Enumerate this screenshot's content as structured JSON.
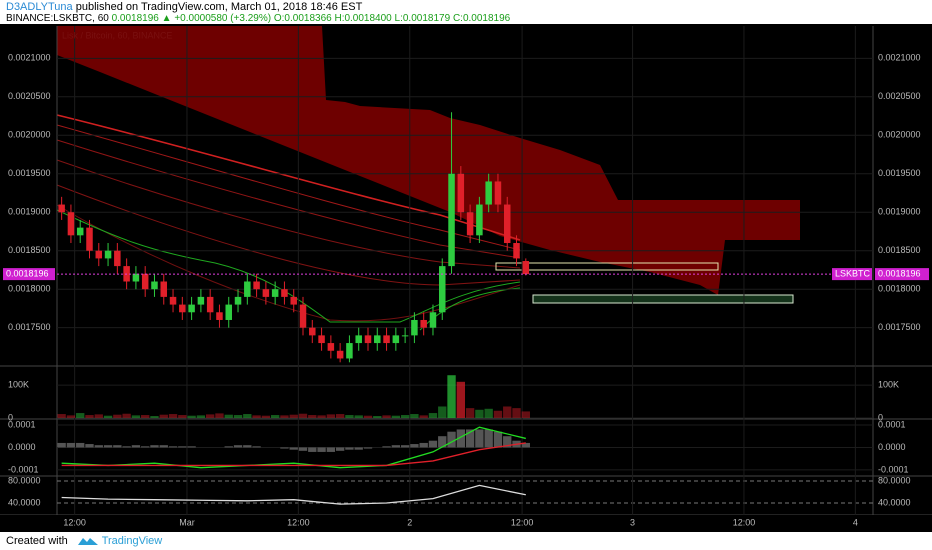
{
  "header": {
    "author": "D3ADLYTuna",
    "published": "published on TradingView.com, March 01, 2018 18:46 EST",
    "symbol": "BINANCE:LSKBTC, 60",
    "price": "0.0018196",
    "change": "▲ +0.0000580 (+3.29%)",
    "open": "O:0.0018366",
    "high": "H:0.0018400",
    "low": "L:0.0018179",
    "close": "C:0.0018196"
  },
  "footer": {
    "created": "Created with",
    "brand": "TradingView"
  },
  "chart_data": [
    {
      "type": "candlestick",
      "title": "Lisk / Bitcoin, 60, BINANCE",
      "up_color": "#2ecc40",
      "down_color": "#e0202a",
      "open": [
        0.00191,
        0.0019,
        0.00187,
        0.00188,
        0.00185,
        0.00184,
        0.00185,
        0.00183,
        0.00181,
        0.00182,
        0.0018,
        0.00181,
        0.00179,
        0.00178,
        0.00177,
        0.00178,
        0.00179,
        0.00177,
        0.00176,
        0.00178,
        0.00179,
        0.00181,
        0.0018,
        0.00179,
        0.0018,
        0.00179,
        0.00178,
        0.00175,
        0.00174,
        0.00173,
        0.00172,
        0.00171,
        0.00173,
        0.00174,
        0.00173,
        0.00174,
        0.00173,
        0.00174,
        0.00174,
        0.00176,
        0.00175,
        0.00177,
        0.00183,
        0.00195,
        0.0019,
        0.00187,
        0.00191,
        0.00194,
        0.00191,
        0.00186,
        0.0018366
      ],
      "high": [
        0.00192,
        0.00191,
        0.00189,
        0.00189,
        0.00186,
        0.00186,
        0.00186,
        0.00184,
        0.00183,
        0.00183,
        0.00182,
        0.00182,
        0.0018,
        0.00179,
        0.00179,
        0.0018,
        0.0018,
        0.00178,
        0.00179,
        0.0018,
        0.00182,
        0.00182,
        0.00181,
        0.00181,
        0.00181,
        0.0018,
        0.00179,
        0.00176,
        0.00175,
        0.00174,
        0.00173,
        0.00174,
        0.00175,
        0.00175,
        0.00175,
        0.00175,
        0.00175,
        0.00175,
        0.00177,
        0.00177,
        0.00178,
        0.00184,
        0.00203,
        0.00196,
        0.00191,
        0.00192,
        0.00195,
        0.00195,
        0.00192,
        0.00187,
        0.00184
      ],
      "low": [
        0.00189,
        0.00186,
        0.00186,
        0.00184,
        0.00183,
        0.00183,
        0.00182,
        0.0018,
        0.0018,
        0.00179,
        0.00179,
        0.00178,
        0.00177,
        0.00176,
        0.00176,
        0.00177,
        0.00176,
        0.00175,
        0.00175,
        0.00177,
        0.00178,
        0.00179,
        0.00178,
        0.00178,
        0.00178,
        0.00177,
        0.00174,
        0.00173,
        0.00172,
        0.00171,
        0.001705,
        0.001705,
        0.00172,
        0.00172,
        0.00172,
        0.00172,
        0.00172,
        0.00173,
        0.00173,
        0.00174,
        0.00174,
        0.00176,
        0.00182,
        0.00189,
        0.00186,
        0.00186,
        0.0019,
        0.0019,
        0.00185,
        0.00183,
        0.0018179
      ],
      "close": [
        0.0019,
        0.00187,
        0.00188,
        0.00185,
        0.00184,
        0.00185,
        0.00183,
        0.00181,
        0.00182,
        0.0018,
        0.00181,
        0.00179,
        0.00178,
        0.00177,
        0.00178,
        0.00179,
        0.00177,
        0.00176,
        0.00178,
        0.00179,
        0.00181,
        0.0018,
        0.00179,
        0.0018,
        0.00179,
        0.00178,
        0.00175,
        0.00174,
        0.00173,
        0.00172,
        0.00171,
        0.00173,
        0.00174,
        0.00173,
        0.00174,
        0.00173,
        0.00174,
        0.00174,
        0.00176,
        0.00175,
        0.00177,
        0.00183,
        0.00195,
        0.0019,
        0.00187,
        0.00191,
        0.00194,
        0.00191,
        0.00186,
        0.00184,
        0.0018196
      ],
      "last_price": 0.0018196,
      "last_label": "LSKBTC",
      "ylim": [
        0.0017015,
        0.002142
      ],
      "yticks": [
        {
          "value": 0.00175,
          "label": "0.0017500"
        },
        {
          "value": 0.0018,
          "label": "0.0018000"
        },
        {
          "value": 0.00185,
          "label": "0.0018500"
        },
        {
          "value": 0.0019,
          "label": "0.0019000"
        },
        {
          "value": 0.00195,
          "label": "0.0019500"
        },
        {
          "value": 0.002,
          "label": "0.0020000"
        },
        {
          "value": 0.00205,
          "label": "0.0020500"
        },
        {
          "value": 0.0021,
          "label": "0.0021000"
        }
      ],
      "xlim": [
        -0.5,
        87.4
      ],
      "xticks": [
        {
          "value": 1.4,
          "label": "12:00"
        },
        {
          "value": 13.5,
          "label": "Mar"
        },
        {
          "value": 25.5,
          "label": "12:00"
        },
        {
          "value": 37.5,
          "label": "2"
        },
        {
          "value": 49.6,
          "label": "12:00"
        },
        {
          "value": 61.5,
          "label": "3"
        },
        {
          "value": 73.5,
          "label": "12:00"
        },
        {
          "value": 85.5,
          "label": "4"
        }
      ]
    },
    {
      "type": "volume",
      "values": [
        12000,
        8000,
        15000,
        9000,
        11000,
        7000,
        10000,
        13000,
        8000,
        9000,
        6000,
        10000,
        12000,
        9000,
        7000,
        8000,
        11000,
        14000,
        10000,
        9000,
        12000,
        8000,
        7000,
        9000,
        8000,
        10000,
        13000,
        9000,
        8000,
        11000,
        12000,
        9000,
        8000,
        7000,
        6000,
        8000,
        7000,
        9000,
        12000,
        8000,
        15000,
        35000,
        130000,
        110000,
        30000,
        25000,
        28000,
        22000,
        35000,
        30000,
        20000
      ],
      "ylim": [
        0,
        155000
      ],
      "yticks": [
        0,
        {
          "value": 100000,
          "label": "100K"
        }
      ]
    },
    {
      "type": "macd",
      "histogram": [
        2e-05,
        2e-05,
        2e-05,
        1.5e-05,
        1e-05,
        1e-05,
        1e-05,
        5e-06,
        1e-05,
        5e-06,
        1e-05,
        1e-05,
        5e-06,
        5e-06,
        5e-06,
        0,
        0,
        0,
        5e-06,
        1e-05,
        1e-05,
        5e-06,
        0,
        0,
        -5e-06,
        -1e-05,
        -1.5e-05,
        -2e-05,
        -2e-05,
        -2e-05,
        -1.5e-05,
        -1e-05,
        -1e-05,
        -5e-06,
        0,
        5e-06,
        1e-05,
        1e-05,
        1.5e-05,
        2e-05,
        3e-05,
        5e-05,
        7e-05,
        8e-05,
        8e-05,
        8e-05,
        8e-05,
        7e-05,
        5e-05,
        3e-05,
        2e-05
      ],
      "histogram_color": "#555555",
      "x": [
        0,
        5,
        10,
        15,
        20,
        25,
        30,
        35,
        40,
        45,
        50
      ],
      "series": [
        {
          "color": "#22dd22",
          "values": [
            -7e-05,
            -8e-05,
            -7e-05,
            -9e-05,
            -8e-05,
            -7e-05,
            -9e-05,
            -8e-05,
            -2e-05,
            9e-05,
            4e-05
          ]
        },
        {
          "color": "#e0202a",
          "values": [
            -8e-05,
            -8e-05,
            -8e-05,
            -8e-05,
            -8e-05,
            -8e-05,
            -8e-05,
            -8e-05,
            -6e-05,
            -1e-05,
            2e-05
          ]
        }
      ],
      "ylim": [
        -0.000127,
        0.000122
      ],
      "yticks": [
        -0.0001,
        {
          "value": 0,
          "label": "0.0000"
        },
        0.0001
      ]
    },
    {
      "type": "oscillator",
      "x": [
        0,
        5,
        10,
        15,
        20,
        25,
        30,
        35,
        40,
        45,
        50
      ],
      "series": [
        {
          "color": "#dddddd",
          "values": [
            50,
            47,
            46,
            45,
            44,
            46,
            38,
            40,
            48,
            72,
            55
          ]
        }
      ],
      "ylim": [
        18.2,
        87.3
      ],
      "yticks": [
        {
          "value": 40,
          "label": "40.0000"
        },
        {
          "value": 80,
          "label": "80.0000"
        }
      ]
    }
  ]
}
